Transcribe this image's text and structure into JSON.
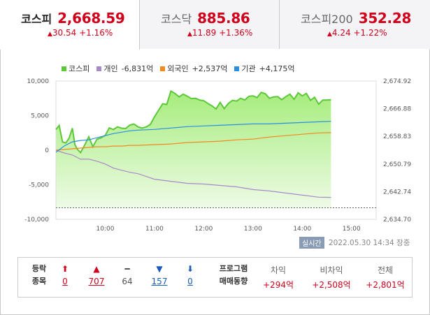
{
  "tabs": [
    {
      "name": "코스피",
      "value": "2,668.59",
      "change": "30.54",
      "pct": "+1.16%"
    },
    {
      "name": "코스닥",
      "value": "885.86",
      "change": "11.89",
      "pct": "+1.36%"
    },
    {
      "name": "코스피200",
      "value": "352.28",
      "change": "4.24",
      "pct": "+1.22%"
    }
  ],
  "legend": [
    {
      "name": "코스피",
      "value": "",
      "color": "#5cc83a"
    },
    {
      "name": "개인",
      "value": "-6,831억",
      "color": "#a889c8"
    },
    {
      "name": "외국인",
      "value": "+2,537억",
      "color": "#ef8a1e"
    },
    {
      "name": "기관",
      "value": "+4,175억",
      "color": "#2b8ee0"
    }
  ],
  "chart_data": {
    "type": "line",
    "x_ticks": [
      "10:00",
      "11:00",
      "12:00",
      "13:00",
      "14:00",
      "15:00"
    ],
    "y_left_ticks": [
      "10,000",
      "5,000",
      "0",
      "-5,000",
      "-10,000"
    ],
    "y_right_ticks": [
      "2,674.92",
      "2,666.88",
      "2,658.83",
      "2,650.79",
      "2,642.74",
      "2,634.70"
    ],
    "y_left_range": [
      -10000,
      10000
    ],
    "y_right_range": [
      2634.7,
      2674.92
    ],
    "x_range_minutes": [
      540,
      930
    ],
    "previous_close": 2638.05,
    "series": [
      {
        "name": "코스피",
        "axis": "right",
        "color": "#5cc83a",
        "x": [
          540,
          544,
          548,
          552,
          556,
          560,
          563,
          566,
          570,
          575,
          580,
          585,
          590,
          595,
          600,
          605,
          610,
          615,
          620,
          625,
          630,
          635,
          640,
          645,
          650,
          655,
          660,
          665,
          670,
          675,
          680,
          685,
          690,
          695,
          700,
          705,
          710,
          715,
          720,
          725,
          730,
          735,
          740,
          745,
          750,
          755,
          760,
          765,
          770,
          775,
          780,
          785,
          790,
          795,
          800,
          805,
          810,
          815,
          820,
          825,
          830,
          835,
          840,
          845,
          850,
          855,
          860,
          865,
          870,
          875
        ],
        "y": [
          2660.8,
          2662.0,
          2657.2,
          2656.9,
          2658.3,
          2661.2,
          2656.5,
          2655.1,
          2654.1,
          2656.3,
          2658.7,
          2655.8,
          2658.0,
          2658.4,
          2659.1,
          2661.3,
          2660.8,
          2661.6,
          2661.2,
          2661.1,
          2662.1,
          2662.4,
          2661.6,
          2661.2,
          2661.6,
          2662.3,
          2664.5,
          2666.4,
          2668.3,
          2668.1,
          2672.0,
          2671.3,
          2670.3,
          2671.1,
          2670.5,
          2669.8,
          2669.9,
          2669.4,
          2669.2,
          2668.4,
          2667.7,
          2666.8,
          2668.7,
          2666.9,
          2668.4,
          2669.3,
          2669.1,
          2669.9,
          2669.4,
          2670.5,
          2670.6,
          2670.1,
          2671.6,
          2671.2,
          2669.9,
          2670.3,
          2670.4,
          2669.5,
          2670.4,
          2671.1,
          2669.6,
          2671.5,
          2670.6,
          2671.3,
          2669.3,
          2670.2,
          2668.2,
          2669.4,
          2669.4,
          2669.5
        ]
      },
      {
        "name": "개인",
        "axis": "left",
        "color": "#a889c8",
        "x": [
          540,
          550,
          560,
          570,
          580,
          590,
          600,
          610,
          620,
          630,
          640,
          660,
          680,
          700,
          720,
          740,
          760,
          780,
          800,
          820,
          840,
          860,
          875
        ],
        "y": [
          0,
          -400,
          -700,
          -1300,
          -1300,
          -1600,
          -2000,
          -2600,
          -2900,
          -3200,
          -3400,
          -4200,
          -4500,
          -4800,
          -4900,
          -5100,
          -5300,
          -5700,
          -5900,
          -6200,
          -6500,
          -6800,
          -6831
        ]
      },
      {
        "name": "외국인",
        "axis": "left",
        "color": "#ef8a1e",
        "x": [
          540,
          550,
          560,
          570,
          580,
          590,
          600,
          610,
          620,
          630,
          640,
          660,
          680,
          700,
          720,
          740,
          760,
          780,
          800,
          820,
          840,
          860,
          875
        ],
        "y": [
          0,
          100,
          200,
          300,
          400,
          500,
          500,
          600,
          600,
          700,
          700,
          800,
          900,
          1100,
          1200,
          1300,
          1500,
          1600,
          1900,
          2100,
          2300,
          2500,
          2537
        ]
      },
      {
        "name": "기관",
        "axis": "left",
        "color": "#2b8ee0",
        "x": [
          540,
          550,
          560,
          570,
          580,
          590,
          600,
          610,
          620,
          630,
          640,
          660,
          680,
          700,
          720,
          740,
          760,
          780,
          800,
          820,
          840,
          860,
          875
        ],
        "y": [
          -300,
          600,
          1200,
          1400,
          1500,
          1800,
          2100,
          2400,
          2600,
          2800,
          2900,
          3000,
          3200,
          3400,
          3500,
          3600,
          3700,
          3800,
          3800,
          3900,
          4000,
          4100,
          4175
        ]
      }
    ]
  },
  "status": {
    "realtime_label": "실시간",
    "timestamp": "2022.05.30 14:34 장중"
  },
  "breadth": {
    "label_line1": "등락",
    "label_line2": "종목",
    "items": [
      {
        "symbol": "⬆",
        "count": "0",
        "tone": "up"
      },
      {
        "symbol": "▲",
        "count": "707",
        "tone": "up"
      },
      {
        "symbol": "━",
        "count": "64",
        "tone": "neu"
      },
      {
        "symbol": "▼",
        "count": "157",
        "tone": "down"
      },
      {
        "symbol": "⬇",
        "count": "0",
        "tone": "down"
      }
    ]
  },
  "program": {
    "label_line1": "프로그램",
    "label_line2": "매매동향",
    "cols": [
      {
        "header": "차익",
        "value": "+294억"
      },
      {
        "header": "비차익",
        "value": "+2,508억"
      },
      {
        "header": "전체",
        "value": "+2,801억"
      }
    ]
  }
}
